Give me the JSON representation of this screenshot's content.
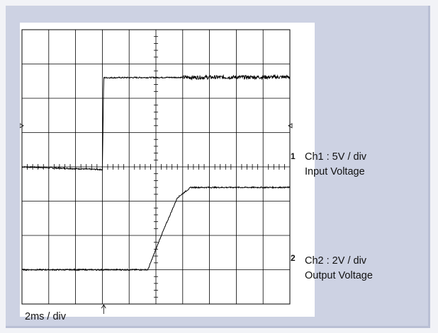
{
  "chart_data": {
    "type": "line",
    "title": "",
    "x_scale_label": "2ms / div",
    "xlim": [
      0,
      10
    ],
    "ylim": [
      -4,
      4
    ],
    "grid": true,
    "divisions": {
      "horizontal": 10,
      "vertical": 8
    },
    "series": [
      {
        "name": "Ch1 : 5V / div",
        "label": "Input Voltage",
        "channel_marker": "1",
        "color": "#000000",
        "points": [
          [
            0,
            0
          ],
          [
            3.0,
            -0.08
          ],
          [
            3.02,
            0.9
          ],
          [
            3.05,
            2.6
          ],
          [
            10,
            2.62
          ]
        ]
      },
      {
        "name": "Ch2 : 2V / div",
        "label": "Output Voltage",
        "channel_marker": "2",
        "color": "#000000",
        "points": [
          [
            0,
            -3.0
          ],
          [
            4.7,
            -3.0
          ],
          [
            5.2,
            -2.0
          ],
          [
            5.8,
            -0.9
          ],
          [
            6.3,
            -0.6
          ],
          [
            10,
            -0.6
          ]
        ]
      }
    ]
  },
  "colors": {
    "panel": "#cdd2e3",
    "background": "#f2f3f7",
    "screen": "#ffffff",
    "grid": "#000000"
  }
}
